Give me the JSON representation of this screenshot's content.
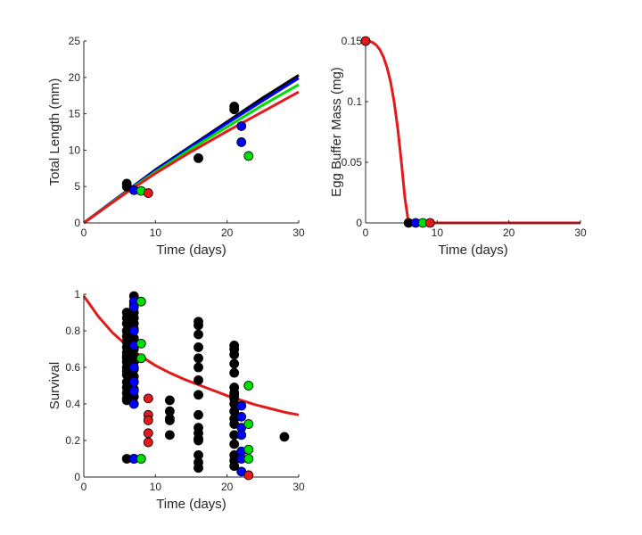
{
  "chart_data": [
    {
      "id": "length",
      "type": "line+scatter",
      "title": "",
      "xlabel": "Time (days)",
      "ylabel": "Total Length (mm)",
      "xlim": [
        0,
        30
      ],
      "ylim": [
        0,
        25
      ],
      "xticks": [
        0,
        10,
        20,
        30
      ],
      "yticks": [
        0,
        5,
        10,
        15,
        20,
        25
      ],
      "grid": false,
      "legend": "none",
      "series": [
        {
          "color": "#000000",
          "type": "line",
          "x": [
            0,
            6,
            10,
            15,
            20,
            25,
            30
          ],
          "y": [
            0,
            4.4,
            7.3,
            10.6,
            13.9,
            17.2,
            20.3
          ]
        },
        {
          "color": "#0000ff",
          "type": "line",
          "x": [
            0,
            6,
            10,
            15,
            20,
            25,
            30
          ],
          "y": [
            0,
            4.4,
            7.2,
            10.5,
            13.7,
            16.8,
            19.9
          ]
        },
        {
          "color": "#00dd00",
          "type": "line",
          "x": [
            0,
            6,
            10,
            15,
            20,
            25,
            30
          ],
          "y": [
            0,
            4.3,
            7.0,
            10.2,
            13.2,
            16.2,
            19.0
          ]
        },
        {
          "color": "#e31a1c",
          "type": "line",
          "x": [
            0,
            6,
            10,
            15,
            20,
            25,
            30
          ],
          "y": [
            0,
            4.2,
            6.8,
            9.8,
            12.6,
            15.3,
            18.0
          ]
        },
        {
          "color": "#000000",
          "type": "scatter",
          "x": [
            6,
            6,
            16,
            21,
            21
          ],
          "y": [
            5.4,
            5.0,
            8.9,
            16.0,
            15.6
          ]
        },
        {
          "color": "#0000ff",
          "type": "scatter",
          "x": [
            7,
            22,
            22
          ],
          "y": [
            4.5,
            13.3,
            11.1
          ]
        },
        {
          "color": "#00dd00",
          "type": "scatter",
          "x": [
            8,
            23
          ],
          "y": [
            4.4,
            9.2
          ]
        },
        {
          "color": "#e31a1c",
          "type": "scatter",
          "x": [
            9
          ],
          "y": [
            4.1
          ]
        }
      ]
    },
    {
      "id": "egg",
      "type": "line+scatter",
      "title": "",
      "xlabel": "Time (days)",
      "ylabel": "Egg Buffer Mass (mg)",
      "xlim": [
        0,
        30
      ],
      "ylim": [
        0,
        0.15
      ],
      "xticks": [
        0,
        10,
        20,
        30
      ],
      "yticks": [
        0,
        0.05,
        0.1,
        0.15
      ],
      "ytick_labels": [
        "0",
        "0.05",
        "0.1",
        "0.15"
      ],
      "grid": false,
      "legend": "none",
      "series": [
        {
          "color": "#e31a1c",
          "type": "line",
          "x": [
            0,
            0.5,
            1,
            1.5,
            2,
            2.5,
            3,
            3.5,
            4,
            4.5,
            5,
            5.5,
            6,
            7,
            10,
            20,
            30
          ],
          "y": [
            0.15,
            0.1498,
            0.1488,
            0.1466,
            0.1428,
            0.1368,
            0.1281,
            0.116,
            0.0994,
            0.0774,
            0.05,
            0.02,
            0,
            0,
            0,
            0,
            0
          ]
        },
        {
          "color": "#e31a1c",
          "type": "scatter",
          "x": [
            0
          ],
          "y": [
            0.15
          ]
        },
        {
          "color": "#000000",
          "type": "scatter",
          "x": [
            6
          ],
          "y": [
            0
          ]
        },
        {
          "color": "#0000ff",
          "type": "scatter",
          "x": [
            7
          ],
          "y": [
            0
          ]
        },
        {
          "color": "#00dd00",
          "type": "scatter",
          "x": [
            8
          ],
          "y": [
            0
          ]
        },
        {
          "color": "#e31a1c",
          "type": "scatter",
          "x": [
            9
          ],
          "y": [
            0
          ]
        }
      ]
    },
    {
      "id": "survival",
      "type": "line+scatter",
      "title": "",
      "xlabel": "Time (days)",
      "ylabel": "Survival",
      "xlim": [
        0,
        30
      ],
      "ylim": [
        0,
        1
      ],
      "xticks": [
        0,
        10,
        20,
        30
      ],
      "yticks": [
        0,
        0.2,
        0.4,
        0.6,
        0.8,
        1
      ],
      "ytick_labels": [
        "0",
        "0.2",
        "0.4",
        "0.6",
        "0.8",
        "1"
      ],
      "grid": false,
      "legend": "none",
      "series": [
        {
          "color": "#e31a1c",
          "type": "line",
          "x": [
            0,
            2,
            4,
            6,
            8,
            10,
            12,
            14,
            16,
            18,
            20,
            22,
            24,
            26,
            28,
            30
          ],
          "y": [
            0.99,
            0.88,
            0.79,
            0.72,
            0.66,
            0.61,
            0.57,
            0.535,
            0.505,
            0.475,
            0.445,
            0.42,
            0.395,
            0.375,
            0.355,
            0.34
          ]
        },
        {
          "color": "#000000",
          "type": "scatter",
          "x": [
            6,
            6,
            6,
            6,
            6,
            6,
            6,
            6,
            6,
            6,
            6,
            6,
            6,
            6,
            6,
            6,
            6,
            6,
            6,
            6,
            7,
            7,
            7,
            7,
            7,
            7,
            7,
            7,
            7,
            7,
            7,
            7,
            7,
            7,
            7,
            7,
            12,
            12,
            12,
            12,
            12,
            16,
            16,
            16,
            16,
            16,
            16,
            16,
            16,
            16,
            16,
            16,
            16,
            16,
            16,
            16,
            16,
            21,
            21,
            21,
            21,
            21,
            21,
            21,
            21,
            21,
            21,
            21,
            21,
            21,
            21,
            21,
            21,
            21,
            21,
            28
          ],
          "y": [
            0.9,
            0.87,
            0.84,
            0.8,
            0.77,
            0.74,
            0.71,
            0.68,
            0.66,
            0.63,
            0.6,
            0.56,
            0.52,
            0.49,
            0.46,
            0.43,
            0.42,
            0.1,
            0.65,
            0.58,
            0.99,
            0.94,
            0.9,
            0.87,
            0.84,
            0.81,
            0.76,
            0.7,
            0.66,
            0.63,
            0.59,
            0.55,
            0.52,
            0.48,
            0.44,
            0.1,
            0.42,
            0.36,
            0.32,
            0.31,
            0.23,
            0.85,
            0.83,
            0.78,
            0.71,
            0.65,
            0.6,
            0.53,
            0.45,
            0.34,
            0.27,
            0.24,
            0.2,
            0.12,
            0.08,
            0.05,
            0.21,
            0.72,
            0.7,
            0.67,
            0.62,
            0.57,
            0.49,
            0.46,
            0.43,
            0.4,
            0.36,
            0.32,
            0.29,
            0.23,
            0.18,
            0.12,
            0.09,
            0.06,
            0.45,
            0.22
          ]
        },
        {
          "color": "#0000ff",
          "type": "scatter",
          "x": [
            7,
            7,
            7,
            7,
            7,
            7,
            7,
            7,
            7,
            22,
            22,
            22,
            22,
            22,
            22,
            22
          ],
          "y": [
            0.96,
            0.93,
            0.8,
            0.72,
            0.6,
            0.52,
            0.47,
            0.4,
            0.1,
            0.39,
            0.33,
            0.27,
            0.23,
            0.14,
            0.1,
            0.03
          ]
        },
        {
          "color": "#00dd00",
          "type": "scatter",
          "x": [
            8,
            8,
            8,
            8,
            23,
            23,
            23,
            23
          ],
          "y": [
            0.96,
            0.73,
            0.65,
            0.1,
            0.5,
            0.29,
            0.15,
            0.1
          ]
        },
        {
          "color": "#e31a1c",
          "type": "scatter",
          "x": [
            9,
            9,
            9,
            9,
            9,
            23
          ],
          "y": [
            0.43,
            0.34,
            0.31,
            0.24,
            0.19,
            0.01
          ]
        }
      ]
    }
  ]
}
